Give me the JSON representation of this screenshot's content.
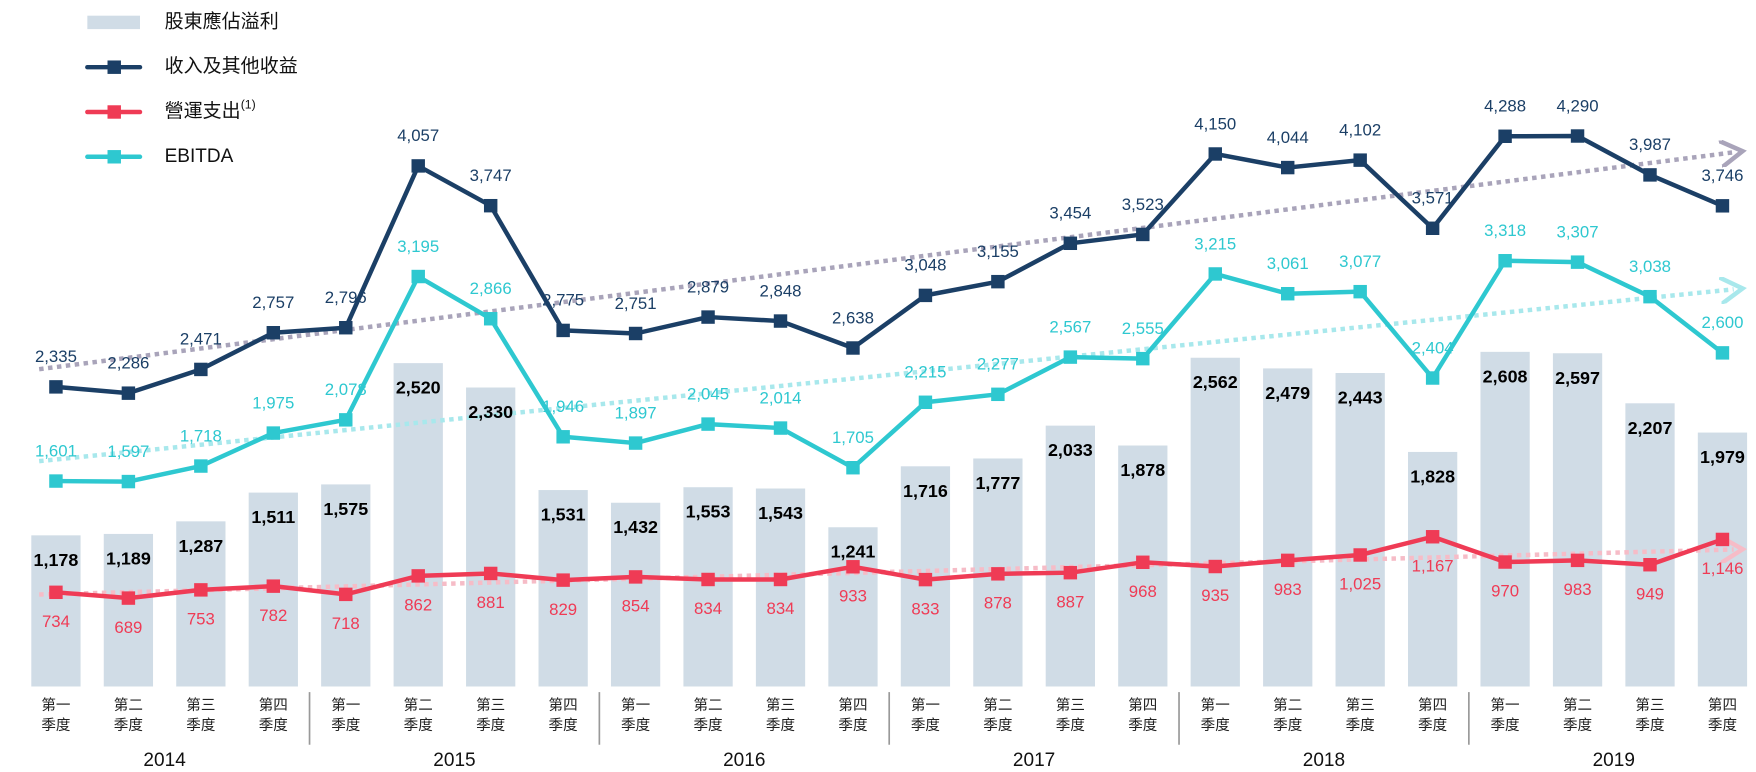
{
  "chart_data": {
    "type": "combo",
    "categories": [
      "第一季度",
      "第二季度",
      "第三季度",
      "第四季度",
      "第一季度",
      "第二季度",
      "第三季度",
      "第四季度",
      "第一季度",
      "第二季度",
      "第三季度",
      "第四季度",
      "第一季度",
      "第二季度",
      "第三季度",
      "第四季度",
      "第一季度",
      "第二季度",
      "第三季度",
      "第四季度",
      "第一季度",
      "第二季度",
      "第三季度",
      "第四季度"
    ],
    "groups": [
      "2014",
      "2015",
      "2016",
      "2017",
      "2018",
      "2019"
    ],
    "ylim": [
      0,
      5350
    ],
    "trend_lines": true,
    "series": [
      {
        "name": "股東應佔溢利",
        "type": "bar",
        "color": "#d0dce6",
        "values": [
          1178,
          1189,
          1287,
          1511,
          1575,
          2520,
          2330,
          1531,
          1432,
          1553,
          1543,
          1241,
          1716,
          1777,
          2033,
          1878,
          2562,
          2479,
          2443,
          1828,
          2608,
          2597,
          2207,
          1979
        ],
        "value_labels": [
          "1,178",
          "1,189",
          "1,287",
          "1,511",
          "1,575",
          "2,520",
          "2,330",
          "1,531",
          "1,432",
          "1,553",
          "1,543",
          "1,241",
          "1,716",
          "1,777",
          "2,033",
          "1,878",
          "2,562",
          "2,479",
          "2,443",
          "1,828",
          "2,608",
          "2,597",
          "2,207",
          "1,979"
        ]
      },
      {
        "name": "收入及其他收益",
        "type": "line",
        "color": "#1b3f66",
        "trend_color": "#a9a4ba",
        "values": [
          2335,
          2286,
          2471,
          2757,
          2796,
          4057,
          3747,
          2775,
          2751,
          2879,
          2848,
          2638,
          3048,
          3155,
          3454,
          3523,
          4150,
          4044,
          4102,
          3571,
          4288,
          4290,
          3987,
          3746
        ],
        "value_labels": [
          "2,335",
          "2,286",
          "2,471",
          "2,757",
          "2,796",
          "4,057",
          "3,747",
          "2,775",
          "2,751",
          "2,879",
          "2,848",
          "2,638",
          "3,048",
          "3,155",
          "3,454",
          "3,523",
          "4,150",
          "4,044",
          "4,102",
          "3,571",
          "4,288",
          "4,290",
          "3,987",
          "3,746"
        ]
      },
      {
        "name": "營運支出",
        "footnote_marker": "(1)",
        "type": "line",
        "color": "#ef3b55",
        "trend_color": "#f6bcc7",
        "values": [
          734,
          689,
          753,
          782,
          718,
          862,
          881,
          829,
          854,
          834,
          834,
          933,
          833,
          878,
          887,
          968,
          935,
          983,
          1025,
          1167,
          970,
          983,
          949,
          1146
        ],
        "value_labels": [
          "734",
          "689",
          "753",
          "782",
          "718",
          "862",
          "881",
          "829",
          "854",
          "834",
          "834",
          "933",
          "833",
          "878",
          "887",
          "968",
          "935",
          "983",
          "1,025",
          "1,167",
          "970",
          "983",
          "949",
          "1,146"
        ]
      },
      {
        "name": "EBITDA",
        "type": "line",
        "color": "#2ec8d0",
        "trend_color": "#a8e8ec",
        "values": [
          1601,
          1597,
          1718,
          1975,
          2078,
          3195,
          2866,
          1946,
          1897,
          2045,
          2014,
          1705,
          2215,
          2277,
          2567,
          2555,
          3215,
          3061,
          3077,
          2404,
          3318,
          3307,
          3038,
          2600
        ],
        "value_labels": [
          "1,601",
          "1,597",
          "1,718",
          "1,975",
          "2,078",
          "3,195",
          "2,866",
          "1,946",
          "1,897",
          "2,045",
          "2,014",
          "1,705",
          "2,215",
          "2,277",
          "2,567",
          "2,555",
          "3,215",
          "3,061",
          "3,077",
          "2,404",
          "3,318",
          "3,307",
          "3,038",
          "2,600"
        ]
      }
    ]
  }
}
